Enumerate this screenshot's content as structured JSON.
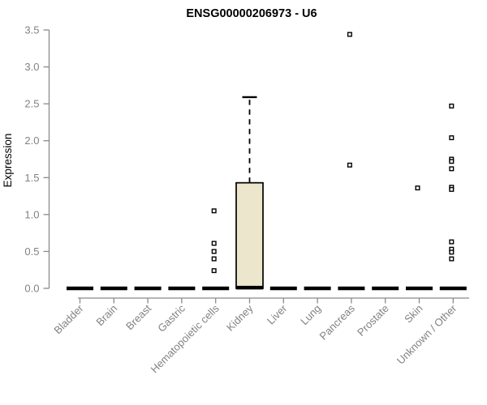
{
  "chart_data": {
    "type": "boxplot",
    "title": "ENSG00000206973 - U6",
    "ylabel": "Expression",
    "xlabel": "",
    "ylim": [
      0,
      3.5
    ],
    "ytick_labels": [
      "0.0",
      "0.5",
      "1.0",
      "1.5",
      "2.0",
      "2.5",
      "3.0",
      "3.5"
    ],
    "ytick_values": [
      0,
      0.5,
      1,
      1.5,
      2,
      2.5,
      3,
      3.5
    ],
    "grid": false,
    "legend": "none",
    "categories": [
      "Bladder",
      "Brain",
      "Breast",
      "Gastric",
      "Hematopoietic cells",
      "Kidney",
      "Liver",
      "Lung",
      "Pancreas",
      "Prostate",
      "Skin",
      "Unknown / Other"
    ],
    "boxes": [
      {
        "category": "Bladder",
        "whisker_low": 0,
        "q1": 0,
        "median": 0,
        "q3": 0,
        "whisker_high": 0,
        "outliers": []
      },
      {
        "category": "Brain",
        "whisker_low": 0,
        "q1": 0,
        "median": 0,
        "q3": 0,
        "whisker_high": 0,
        "outliers": []
      },
      {
        "category": "Breast",
        "whisker_low": 0,
        "q1": 0,
        "median": 0,
        "q3": 0,
        "whisker_high": 0,
        "outliers": []
      },
      {
        "category": "Gastric",
        "whisker_low": 0,
        "q1": 0,
        "median": 0,
        "q3": 0,
        "whisker_high": 0,
        "outliers": []
      },
      {
        "category": "Hematopoietic cells",
        "whisker_low": 0,
        "q1": 0,
        "median": 0,
        "q3": 0,
        "whisker_high": 0,
        "outliers": [
          1.05,
          0.61,
          0.5,
          0.4,
          0.24
        ]
      },
      {
        "category": "Kidney",
        "whisker_low": 0,
        "q1": 0,
        "median": 0.01,
        "q3": 1.43,
        "whisker_high": 2.59,
        "outliers": []
      },
      {
        "category": "Liver",
        "whisker_low": 0,
        "q1": 0,
        "median": 0,
        "q3": 0,
        "whisker_high": 0,
        "outliers": []
      },
      {
        "category": "Lung",
        "whisker_low": 0,
        "q1": 0,
        "median": 0,
        "q3": 0,
        "whisker_high": 0,
        "outliers": []
      },
      {
        "category": "Pancreas",
        "whisker_low": 0,
        "q1": 0,
        "median": 0,
        "q3": 0,
        "whisker_high": 0,
        "outliers": [
          3.44,
          1.67
        ]
      },
      {
        "category": "Prostate",
        "whisker_low": 0,
        "q1": 0,
        "median": 0,
        "q3": 0,
        "whisker_high": 0,
        "outliers": []
      },
      {
        "category": "Skin",
        "whisker_low": 0,
        "q1": 0,
        "median": 0,
        "q3": 0,
        "whisker_high": 0,
        "outliers": [
          1.36
        ]
      },
      {
        "category": "Unknown / Other",
        "whisker_low": 0,
        "q1": 0,
        "median": 0,
        "q3": 0,
        "whisker_high": 0,
        "outliers": [
          2.47,
          2.04,
          1.75,
          1.72,
          1.62,
          1.37,
          1.34,
          0.63,
          0.53,
          0.49,
          0.4
        ]
      }
    ],
    "colors": {
      "box_fill": "#ECE7CC",
      "box_border": "#000000",
      "median": "#000000",
      "whisker": "#000000",
      "outlier_stroke": "#000000",
      "outlier_fill": "#ffffff",
      "axis_line": "#8a8a8a",
      "tick_label": "#828282",
      "title": "#000000",
      "background": "#ffffff"
    }
  }
}
